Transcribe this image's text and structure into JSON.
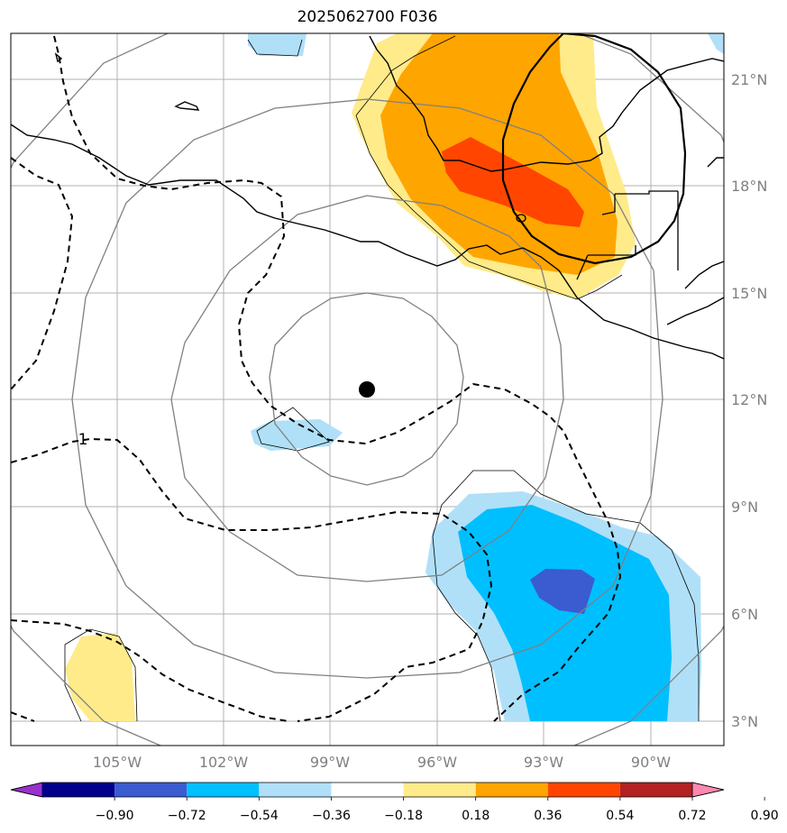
{
  "title": "2025062700 F036",
  "lat_labels": [
    "21°N",
    "18°N",
    "15°N",
    "12°N",
    "9°N",
    "6°N",
    "3°N"
  ],
  "lon_labels": [
    "105°W",
    "102°W",
    "99°W",
    "96°W",
    "93°W",
    "90°W"
  ],
  "contour_label": "1",
  "colorbar": {
    "ticks": [
      "−0.90",
      "−0.72",
      "−0.54",
      "−0.36",
      "−0.18",
      "0.18",
      "0.36",
      "0.54",
      "0.72",
      "0.90"
    ],
    "colors": [
      "#9932cc",
      "#00008b",
      "#3b5bd0",
      "#00bfff",
      "#b0e0f8",
      "#ffffff",
      "#ffeb8a",
      "#ffa500",
      "#ff4500",
      "#b22222",
      "#ff88b0"
    ]
  },
  "colors": {
    "pos_light": "#ffeb8a",
    "pos_mid": "#ffa500",
    "pos_high": "#ff4500",
    "neg_light": "#b0e0f8",
    "neg_mid": "#00bfff",
    "neg_high": "#3b5bd0",
    "grid": "#b0b0b0",
    "ring": "#808080"
  }
}
